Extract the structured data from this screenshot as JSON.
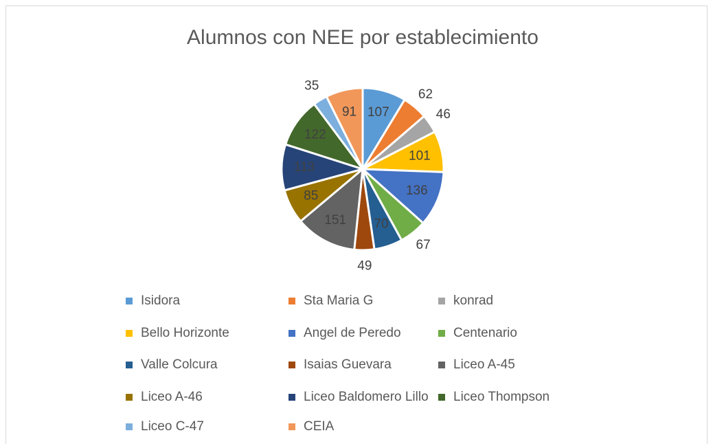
{
  "chart_data": {
    "type": "pie",
    "title": "Alumnos con NEE por establecimiento",
    "categories": [
      "Isidora",
      "Sta Maria G",
      "konrad",
      "Bello Horizonte",
      "Angel de Peredo",
      "Centenario",
      "Valle Colcura",
      "Isaias Guevara",
      "Liceo A-45",
      "Liceo A-46",
      "Liceo Baldomero Lillo",
      "Liceo Thompson",
      "Liceo C-47",
      "CEIA"
    ],
    "values": [
      107,
      62,
      46,
      101,
      136,
      67,
      70,
      49,
      151,
      85,
      113,
      122,
      35,
      91
    ],
    "colors": [
      "#5b9bd5",
      "#ed7d31",
      "#a5a5a5",
      "#ffc000",
      "#4472c4",
      "#70ad47",
      "#255e91",
      "#9e480e",
      "#636363",
      "#997300",
      "#264478",
      "#43682b",
      "#7cafdd",
      "#f1975a"
    ],
    "legend": "bottom"
  }
}
